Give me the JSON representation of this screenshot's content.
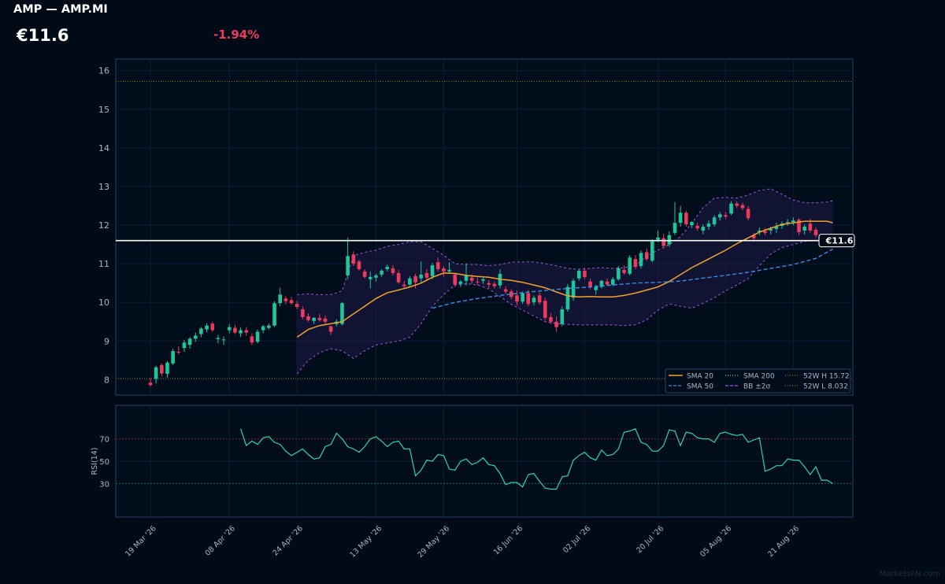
{
  "header": {
    "title": "AMP — AMP.MI",
    "price": "€11.6",
    "change": "-1.94%"
  },
  "colors": {
    "background": "#010b17",
    "panel_border": "#2c3f62",
    "up": "#1fc69a",
    "down": "#ee3b5d",
    "sma20": "#f0a32e",
    "sma50": "#3a8ee6",
    "bb": "#9b59d6",
    "rsi": "#2ed3a8",
    "last_price_line": "#ffffff"
  },
  "watermark": "MarketsFN.com",
  "chart_data": {
    "type": "candlestick",
    "ylim": [
      7.6,
      16.3
    ],
    "yticks": [
      8,
      9,
      10,
      11,
      12,
      13,
      14,
      15,
      16
    ],
    "last_price": 11.6,
    "last_price_label": "€11.6",
    "week52_high": 15.72,
    "week52_low": 8.032,
    "x_labels": [
      {
        "label": "19 Mar '26",
        "index": 0
      },
      {
        "label": "08 Apr '26",
        "index": 14
      },
      {
        "label": "24 Apr '26",
        "index": 26
      },
      {
        "label": "13 May '26",
        "index": 40
      },
      {
        "label": "29 May '26",
        "index": 52
      },
      {
        "label": "16 Jun '26",
        "index": 65
      },
      {
        "label": "02 Jul '26",
        "index": 77
      },
      {
        "label": "20 Jul '26",
        "index": 90
      },
      {
        "label": "05 Aug '26",
        "index": 102
      },
      {
        "label": "21 Aug '26",
        "index": 114
      }
    ],
    "legend": [
      {
        "name": "SMA 20",
        "style": "solid",
        "color": "#f0a32e"
      },
      {
        "name": "SMA 200",
        "style": "dotted",
        "color": "#2ed3a8"
      },
      {
        "name": "52W H 15.72",
        "style": "dotted",
        "color": "#8a6d2e"
      },
      {
        "name": "SMA 50",
        "style": "dashed",
        "color": "#3a8ee6"
      },
      {
        "name": "BB ±2σ",
        "style": "dashed",
        "color": "#9b59d6"
      },
      {
        "name": "52W L 8.032",
        "style": "dotted",
        "color": "#8a6d2e"
      }
    ],
    "legend_position": "bottom-right",
    "candles": [
      [
        7.92,
        8.04,
        7.82,
        7.86
      ],
      [
        8.02,
        8.36,
        7.9,
        8.32
      ],
      [
        8.38,
        8.42,
        8.08,
        8.16
      ],
      [
        8.15,
        8.48,
        8.05,
        8.44
      ],
      [
        8.42,
        8.8,
        8.38,
        8.74
      ],
      [
        8.72,
        8.86,
        8.66,
        8.7
      ],
      [
        8.82,
        9.03,
        8.72,
        8.96
      ],
      [
        8.9,
        9.1,
        8.8,
        9.06
      ],
      [
        9.06,
        9.22,
        8.98,
        9.14
      ],
      [
        9.18,
        9.36,
        9.1,
        9.32
      ],
      [
        9.3,
        9.46,
        9.22,
        9.4
      ],
      [
        9.45,
        9.5,
        9.24,
        9.28
      ],
      [
        9.05,
        9.16,
        8.94,
        9.08
      ],
      [
        9.02,
        9.12,
        8.9,
        9.04
      ],
      [
        9.28,
        9.44,
        9.2,
        9.36
      ],
      [
        9.34,
        9.42,
        9.18,
        9.22
      ],
      [
        9.2,
        9.36,
        9.1,
        9.28
      ],
      [
        9.28,
        9.36,
        9.14,
        9.22
      ],
      [
        9.12,
        9.2,
        8.9,
        8.96
      ],
      [
        8.98,
        9.3,
        8.94,
        9.24
      ],
      [
        9.28,
        9.42,
        9.2,
        9.38
      ],
      [
        9.34,
        9.45,
        9.3,
        9.4
      ],
      [
        9.4,
        10.03,
        9.36,
        9.98
      ],
      [
        9.98,
        10.38,
        9.9,
        10.2
      ],
      [
        10.1,
        10.16,
        9.94,
        10.03
      ],
      [
        10.06,
        10.14,
        9.94,
        9.98
      ],
      [
        9.96,
        10.04,
        9.82,
        9.88
      ],
      [
        9.82,
        9.9,
        9.56,
        9.62
      ],
      [
        9.64,
        9.72,
        9.5,
        9.54
      ],
      [
        9.52,
        9.62,
        9.44,
        9.6
      ],
      [
        9.6,
        9.7,
        9.5,
        9.54
      ],
      [
        9.58,
        9.66,
        9.44,
        9.5
      ],
      [
        9.38,
        9.4,
        9.16,
        9.24
      ],
      [
        9.44,
        9.56,
        9.38,
        9.5
      ],
      [
        9.44,
        10.01,
        9.4,
        9.98
      ],
      [
        10.7,
        11.68,
        10.6,
        11.2
      ],
      [
        11.24,
        11.32,
        10.94,
        11.0
      ],
      [
        11.06,
        11.1,
        10.82,
        10.86
      ],
      [
        10.8,
        10.86,
        10.62,
        10.66
      ],
      [
        10.6,
        10.8,
        10.36,
        10.66
      ],
      [
        10.64,
        10.74,
        10.54,
        10.7
      ],
      [
        10.72,
        10.86,
        10.66,
        10.82
      ],
      [
        10.86,
        10.98,
        10.8,
        10.92
      ],
      [
        10.88,
        10.96,
        10.7,
        10.76
      ],
      [
        10.76,
        10.84,
        10.48,
        10.52
      ],
      [
        10.46,
        10.56,
        10.36,
        10.42
      ],
      [
        10.46,
        10.68,
        10.4,
        10.62
      ],
      [
        10.68,
        10.74,
        10.36,
        10.52
      ],
      [
        10.62,
        11.06,
        10.5,
        10.72
      ],
      [
        10.76,
        10.86,
        10.56,
        10.64
      ],
      [
        10.68,
        11.02,
        10.6,
        10.96
      ],
      [
        11.04,
        11.16,
        10.8,
        10.86
      ],
      [
        10.88,
        10.94,
        10.66,
        10.8
      ],
      [
        10.8,
        11.04,
        10.74,
        10.84
      ],
      [
        10.72,
        10.76,
        10.4,
        10.46
      ],
      [
        10.48,
        10.58,
        10.4,
        10.54
      ],
      [
        10.56,
        11.02,
        10.44,
        10.7
      ],
      [
        10.64,
        10.72,
        10.48,
        10.56
      ],
      [
        10.54,
        10.64,
        10.44,
        10.52
      ],
      [
        10.56,
        10.64,
        10.48,
        10.6
      ],
      [
        10.5,
        10.58,
        10.38,
        10.46
      ],
      [
        10.48,
        10.54,
        10.36,
        10.42
      ],
      [
        10.44,
        10.86,
        10.36,
        10.74
      ],
      [
        10.34,
        10.42,
        10.22,
        10.28
      ],
      [
        10.28,
        10.34,
        10.08,
        10.14
      ],
      [
        10.18,
        10.3,
        9.92,
        10.02
      ],
      [
        10.02,
        10.28,
        9.96,
        10.24
      ],
      [
        10.24,
        10.32,
        9.9,
        9.96
      ],
      [
        10.0,
        10.18,
        9.92,
        10.12
      ],
      [
        10.18,
        10.26,
        9.94,
        10.0
      ],
      [
        10.04,
        10.12,
        9.54,
        9.6
      ],
      [
        9.62,
        9.72,
        9.44,
        9.5
      ],
      [
        9.5,
        9.64,
        9.24,
        9.36
      ],
      [
        9.44,
        9.9,
        9.38,
        9.82
      ],
      [
        9.82,
        10.48,
        9.76,
        10.4
      ],
      [
        10.12,
        10.62,
        10.04,
        10.56
      ],
      [
        10.62,
        10.86,
        10.56,
        10.82
      ],
      [
        10.82,
        10.9,
        10.6,
        10.66
      ],
      [
        10.54,
        10.62,
        10.34,
        10.4
      ],
      [
        10.32,
        10.46,
        10.2,
        10.4
      ],
      [
        10.4,
        10.58,
        10.36,
        10.56
      ],
      [
        10.54,
        10.62,
        10.42,
        10.46
      ],
      [
        10.46,
        10.66,
        10.42,
        10.6
      ],
      [
        10.6,
        10.94,
        10.56,
        10.88
      ],
      [
        10.84,
        10.96,
        10.72,
        10.76
      ],
      [
        10.74,
        11.22,
        10.7,
        11.16
      ],
      [
        11.12,
        11.22,
        10.86,
        10.92
      ],
      [
        10.94,
        11.34,
        10.88,
        11.28
      ],
      [
        11.3,
        11.4,
        11.08,
        11.12
      ],
      [
        11.08,
        11.64,
        11.04,
        11.58
      ],
      [
        11.62,
        11.86,
        11.56,
        11.68
      ],
      [
        11.66,
        11.78,
        11.4,
        11.46
      ],
      [
        11.5,
        11.84,
        11.44,
        11.74
      ],
      [
        11.8,
        12.6,
        11.74,
        12.06
      ],
      [
        12.06,
        12.5,
        11.96,
        12.32
      ],
      [
        12.32,
        12.38,
        11.96,
        12.02
      ],
      [
        12.0,
        12.1,
        11.92,
        12.08
      ],
      [
        11.98,
        12.06,
        11.86,
        11.92
      ],
      [
        11.86,
        12.02,
        11.76,
        11.96
      ],
      [
        11.96,
        12.12,
        11.88,
        12.04
      ],
      [
        12.02,
        12.26,
        11.96,
        12.2
      ],
      [
        12.2,
        12.34,
        12.12,
        12.28
      ],
      [
        12.26,
        12.34,
        12.16,
        12.22
      ],
      [
        12.3,
        12.62,
        12.26,
        12.56
      ],
      [
        12.56,
        12.62,
        12.44,
        12.5
      ],
      [
        12.52,
        12.58,
        12.38,
        12.44
      ],
      [
        12.42,
        12.5,
        12.12,
        12.18
      ],
      [
        11.74,
        11.8,
        11.6,
        11.66
      ],
      [
        11.82,
        11.94,
        11.74,
        11.86
      ],
      [
        11.84,
        11.92,
        11.74,
        11.8
      ],
      [
        11.86,
        11.96,
        11.76,
        11.9
      ],
      [
        11.9,
        12.06,
        11.8,
        11.96
      ],
      [
        11.98,
        12.1,
        11.9,
        12.04
      ],
      [
        12.06,
        12.16,
        11.98,
        12.08
      ],
      [
        12.08,
        12.2,
        12.0,
        12.12
      ],
      [
        12.14,
        12.18,
        11.74,
        11.82
      ],
      [
        11.86,
        12.02,
        11.76,
        11.96
      ],
      [
        12.04,
        12.16,
        11.8,
        11.86
      ],
      [
        11.88,
        11.94,
        11.68,
        11.74
      ]
    ],
    "sma20": [
      [
        26,
        9.1
      ],
      [
        28,
        9.3
      ],
      [
        30,
        9.4
      ],
      [
        32,
        9.45
      ],
      [
        34,
        9.5
      ],
      [
        36,
        9.7
      ],
      [
        38,
        9.9
      ],
      [
        40,
        10.1
      ],
      [
        42,
        10.25
      ],
      [
        44,
        10.32
      ],
      [
        46,
        10.4
      ],
      [
        48,
        10.5
      ],
      [
        50,
        10.65
      ],
      [
        52,
        10.76
      ],
      [
        54,
        10.75
      ],
      [
        56,
        10.7
      ],
      [
        58,
        10.67
      ],
      [
        60,
        10.65
      ],
      [
        62,
        10.6
      ],
      [
        64,
        10.57
      ],
      [
        66,
        10.52
      ],
      [
        68,
        10.45
      ],
      [
        70,
        10.38
      ],
      [
        72,
        10.27
      ],
      [
        74,
        10.17
      ],
      [
        76,
        10.14
      ],
      [
        78,
        10.15
      ],
      [
        80,
        10.14
      ],
      [
        82,
        10.14
      ],
      [
        84,
        10.18
      ],
      [
        86,
        10.24
      ],
      [
        88,
        10.32
      ],
      [
        90,
        10.4
      ],
      [
        92,
        10.54
      ],
      [
        94,
        10.72
      ],
      [
        96,
        10.9
      ],
      [
        98,
        11.05
      ],
      [
        100,
        11.2
      ],
      [
        102,
        11.35
      ],
      [
        104,
        11.52
      ],
      [
        106,
        11.67
      ],
      [
        108,
        11.82
      ],
      [
        110,
        11.92
      ],
      [
        112,
        12.02
      ],
      [
        114,
        12.06
      ],
      [
        116,
        12.1
      ],
      [
        118,
        12.1
      ],
      [
        120,
        12.1
      ],
      [
        121,
        12.06
      ]
    ],
    "sma50": [
      [
        50,
        9.85
      ],
      [
        54,
        10.0
      ],
      [
        58,
        10.1
      ],
      [
        62,
        10.18
      ],
      [
        66,
        10.25
      ],
      [
        70,
        10.31
      ],
      [
        74,
        10.36
      ],
      [
        78,
        10.4
      ],
      [
        82,
        10.45
      ],
      [
        86,
        10.5
      ],
      [
        90,
        10.52
      ],
      [
        94,
        10.55
      ],
      [
        98,
        10.63
      ],
      [
        102,
        10.7
      ],
      [
        106,
        10.78
      ],
      [
        110,
        10.88
      ],
      [
        114,
        10.98
      ],
      [
        118,
        11.14
      ],
      [
        121,
        11.38
      ]
    ],
    "bb_upper": [
      [
        26,
        10.2
      ],
      [
        28,
        10.22
      ],
      [
        30,
        10.2
      ],
      [
        32,
        10.2
      ],
      [
        34,
        10.3
      ],
      [
        36,
        11.2
      ],
      [
        38,
        11.3
      ],
      [
        40,
        11.35
      ],
      [
        42,
        11.45
      ],
      [
        44,
        11.5
      ],
      [
        46,
        11.57
      ],
      [
        48,
        11.57
      ],
      [
        50,
        11.4
      ],
      [
        52,
        11.22
      ],
      [
        54,
        11.0
      ],
      [
        56,
        10.98
      ],
      [
        58,
        10.98
      ],
      [
        60,
        10.95
      ],
      [
        62,
        10.98
      ],
      [
        64,
        11.04
      ],
      [
        66,
        11.05
      ],
      [
        68,
        11.05
      ],
      [
        70,
        11.0
      ],
      [
        72,
        10.95
      ],
      [
        74,
        10.88
      ],
      [
        76,
        10.86
      ],
      [
        78,
        10.88
      ],
      [
        80,
        10.9
      ],
      [
        82,
        10.88
      ],
      [
        84,
        10.9
      ],
      [
        86,
        10.95
      ],
      [
        88,
        11.2
      ],
      [
        90,
        11.35
      ],
      [
        92,
        11.5
      ],
      [
        94,
        11.7
      ],
      [
        96,
        12.05
      ],
      [
        98,
        12.45
      ],
      [
        100,
        12.7
      ],
      [
        102,
        12.72
      ],
      [
        104,
        12.7
      ],
      [
        106,
        12.78
      ],
      [
        108,
        12.9
      ],
      [
        110,
        12.94
      ],
      [
        112,
        12.8
      ],
      [
        114,
        12.65
      ],
      [
        116,
        12.58
      ],
      [
        118,
        12.58
      ],
      [
        120,
        12.6
      ],
      [
        121,
        12.63
      ]
    ],
    "bb_lower": [
      [
        26,
        8.15
      ],
      [
        28,
        8.5
      ],
      [
        30,
        8.7
      ],
      [
        32,
        8.8
      ],
      [
        34,
        8.75
      ],
      [
        36,
        8.55
      ],
      [
        38,
        8.75
      ],
      [
        40,
        8.9
      ],
      [
        42,
        8.95
      ],
      [
        44,
        9.0
      ],
      [
        46,
        9.1
      ],
      [
        48,
        9.45
      ],
      [
        50,
        9.9
      ],
      [
        52,
        10.2
      ],
      [
        54,
        10.45
      ],
      [
        56,
        10.48
      ],
      [
        58,
        10.45
      ],
      [
        60,
        10.35
      ],
      [
        62,
        10.15
      ],
      [
        64,
        9.95
      ],
      [
        66,
        9.8
      ],
      [
        68,
        9.65
      ],
      [
        70,
        9.5
      ],
      [
        72,
        9.45
      ],
      [
        74,
        9.43
      ],
      [
        76,
        9.42
      ],
      [
        78,
        9.42
      ],
      [
        80,
        9.42
      ],
      [
        82,
        9.42
      ],
      [
        84,
        9.4
      ],
      [
        86,
        9.42
      ],
      [
        88,
        9.55
      ],
      [
        90,
        9.8
      ],
      [
        92,
        9.96
      ],
      [
        94,
        9.9
      ],
      [
        96,
        9.85
      ],
      [
        98,
        9.98
      ],
      [
        100,
        10.12
      ],
      [
        102,
        10.3
      ],
      [
        104,
        10.45
      ],
      [
        106,
        10.62
      ],
      [
        108,
        10.95
      ],
      [
        110,
        11.25
      ],
      [
        112,
        11.42
      ],
      [
        114,
        11.5
      ],
      [
        116,
        11.58
      ],
      [
        118,
        11.6
      ],
      [
        120,
        11.62
      ],
      [
        121,
        11.63
      ]
    ],
    "rsi": {
      "label": "RSI(14)",
      "ylim": [
        0,
        100
      ],
      "yticks": [
        30,
        50,
        70
      ],
      "overbought": 70,
      "oversold": 30,
      "start_index": 16,
      "values": [
        79,
        64,
        68,
        65,
        71,
        72,
        67,
        65,
        59,
        55,
        58,
        61,
        56,
        52,
        53,
        63,
        65,
        75,
        70,
        63,
        61,
        58,
        63,
        70,
        72,
        68,
        63,
        67,
        68,
        61,
        61,
        37,
        42,
        51,
        50,
        56,
        55,
        43,
        42,
        50,
        52,
        47,
        49,
        53,
        47,
        46,
        39,
        29,
        31,
        31,
        27,
        38,
        39,
        32,
        26,
        25,
        25,
        36,
        37,
        51,
        55,
        58,
        53,
        51,
        60,
        55,
        56,
        61,
        76,
        77,
        79,
        67,
        65,
        59,
        59,
        64,
        78,
        77,
        64,
        76,
        75,
        71,
        70,
        70,
        67,
        75,
        76,
        74,
        73,
        74,
        67,
        69,
        71,
        41,
        43,
        46,
        46,
        52,
        51,
        51,
        45,
        38,
        45,
        33,
        33,
        30
      ]
    }
  }
}
